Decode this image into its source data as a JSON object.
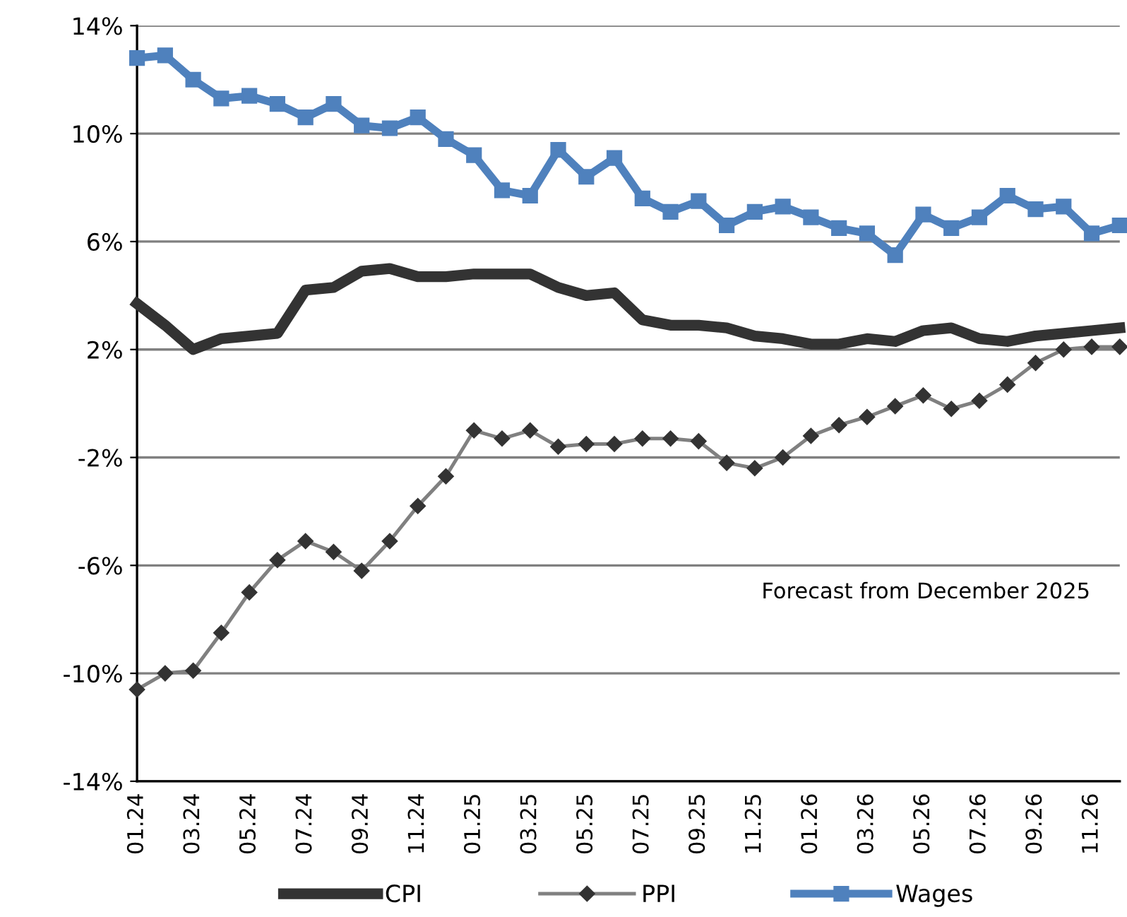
{
  "chart_data": {
    "type": "line",
    "categories": [
      "01.24",
      null,
      "03.24",
      null,
      "05.24",
      null,
      "07.24",
      null,
      "09.24",
      null,
      "11.24",
      null,
      "01.25",
      null,
      "03.25",
      null,
      "05.25",
      null,
      "07.25",
      null,
      "09.25",
      null,
      "11.25",
      null,
      "01.26",
      null,
      "03.26",
      null,
      "05.26",
      null,
      "07.26",
      null,
      "09.26",
      null,
      "11.26",
      null
    ],
    "series": [
      {
        "name": "CPI",
        "color": "#333333",
        "marker": "none",
        "values": [
          3.7,
          2.9,
          2.0,
          2.4,
          2.5,
          2.6,
          4.2,
          4.3,
          4.9,
          5.0,
          4.7,
          4.7,
          4.8,
          4.8,
          4.8,
          4.3,
          4.0,
          4.1,
          3.1,
          2.9,
          2.9,
          2.8,
          2.5,
          2.4,
          2.2,
          2.2,
          2.4,
          2.3,
          2.7,
          2.8,
          2.4,
          2.3,
          2.5,
          2.6,
          2.7,
          2.8
        ]
      },
      {
        "name": "PPI",
        "color": "#808080",
        "marker": "diamond",
        "values": [
          -10.6,
          -10.0,
          -9.9,
          -8.5,
          -7.0,
          -5.8,
          -5.1,
          -5.5,
          -6.2,
          -5.1,
          -3.8,
          -2.7,
          -1.0,
          -1.3,
          -1.0,
          -1.6,
          -1.5,
          -1.5,
          -1.3,
          -1.3,
          -1.4,
          -2.2,
          -2.4,
          -2.0,
          -1.2,
          -0.8,
          -0.5,
          -0.1,
          0.3,
          -0.2,
          0.1,
          0.7,
          1.5,
          2.0,
          2.1,
          2.1
        ]
      },
      {
        "name": "Wages",
        "color": "#4f81bd",
        "marker": "square",
        "values": [
          12.8,
          12.9,
          12.0,
          11.3,
          11.4,
          11.1,
          10.6,
          11.1,
          10.3,
          10.2,
          10.6,
          9.8,
          9.2,
          7.9,
          7.7,
          9.4,
          8.4,
          9.1,
          7.6,
          7.1,
          7.5,
          6.6,
          7.1,
          7.3,
          6.9,
          6.5,
          6.3,
          5.5,
          7.0,
          6.5,
          6.9,
          7.7,
          7.2,
          7.3,
          6.3,
          6.6
        ]
      }
    ],
    "ylim": [
      -14,
      14
    ],
    "yticks": [
      {
        "value": -14,
        "label": "-14%"
      },
      {
        "value": -10,
        "label": "-10%"
      },
      {
        "value": -6,
        "label": "-6%"
      },
      {
        "value": -2,
        "label": "-2%"
      },
      {
        "value": 2,
        "label": "2%"
      },
      {
        "value": 6,
        "label": "6%"
      },
      {
        "value": 10,
        "label": "10%"
      },
      {
        "value": 14,
        "label": "14%"
      }
    ],
    "grid": "y",
    "legend": "bottom",
    "annotations": [
      "Forecast from December 2025"
    ]
  }
}
